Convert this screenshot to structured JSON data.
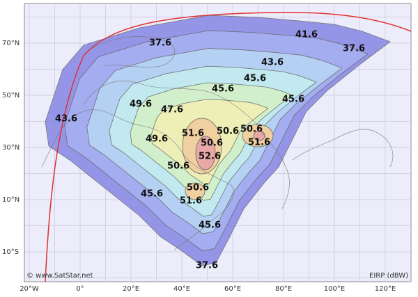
{
  "map": {
    "longitude_labels": [
      "20°W",
      "0°",
      "20°E",
      "40°E",
      "60°E",
      "80°E",
      "100°E",
      "120°E"
    ],
    "latitude_labels": [
      "70°N",
      "50°N",
      "30°N",
      "10°N",
      "10°S"
    ],
    "contour_labels": [
      "37.6",
      "41.6",
      "37.6",
      "43.6",
      "45.6",
      "45.6",
      "45.6",
      "49.6",
      "47.6",
      "43.6",
      "50.6",
      "50.6",
      "51.6",
      "49.6",
      "50.6",
      "51.6",
      "52.6",
      "50.6",
      "50.6",
      "45.6",
      "51.6",
      "45.6",
      "37.6"
    ],
    "credit": "© www.SatStar.net",
    "unit_label": "EIRP (dBW)"
  }
}
